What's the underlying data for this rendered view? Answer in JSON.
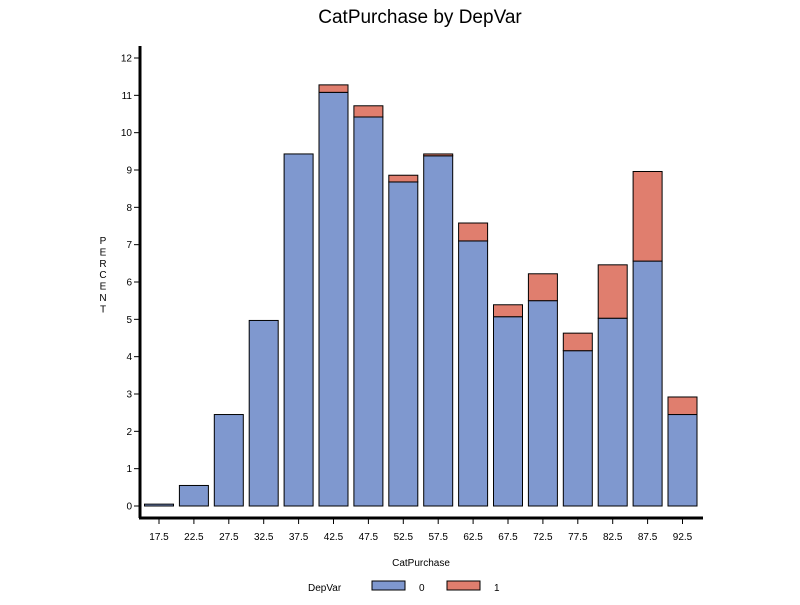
{
  "chart_data": {
    "type": "bar",
    "stacked": true,
    "title": "CatPurchase by DepVar",
    "xlabel": "CatPurchase",
    "ylabel": "PERCENT",
    "categories": [
      "17.5",
      "22.5",
      "27.5",
      "32.5",
      "37.5",
      "42.5",
      "47.5",
      "52.5",
      "57.5",
      "62.5",
      "67.5",
      "72.5",
      "77.5",
      "82.5",
      "87.5",
      "92.5"
    ],
    "series": [
      {
        "name": "0",
        "color": "#7f98cf",
        "values": [
          0.05,
          0.55,
          2.45,
          4.97,
          9.43,
          11.08,
          10.42,
          8.68,
          9.38,
          7.1,
          5.07,
          5.5,
          4.16,
          5.03,
          6.56,
          2.45
        ]
      },
      {
        "name": "1",
        "color": "#e07e6e",
        "values": [
          0.0,
          0.0,
          0.0,
          0.0,
          0.0,
          0.2,
          0.3,
          0.18,
          0.05,
          0.48,
          0.32,
          0.72,
          0.47,
          1.43,
          2.4,
          0.47
        ]
      }
    ],
    "yticks": [
      "0",
      "1",
      "2",
      "3",
      "4",
      "5",
      "6",
      "7",
      "8",
      "9",
      "10",
      "11",
      "12"
    ],
    "ylim": [
      0,
      12
    ],
    "grid": false,
    "legend": {
      "title": "DepVar",
      "position": "bottom"
    }
  }
}
